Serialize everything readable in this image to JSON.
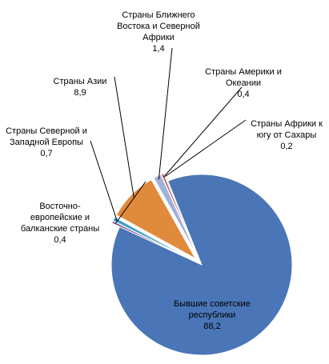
{
  "chart_data": {
    "type": "pie",
    "slices": [
      {
        "label_lines": [
          "Бывшие советские",
          "республики",
          "88,2"
        ],
        "value": 88.2,
        "color": "#4a76b8"
      },
      {
        "label_lines": [
          "Восточно-",
          "европейские и",
          "балканские страны",
          "0,4"
        ],
        "value": 0.4,
        "color": "#7f4b8c"
      },
      {
        "label_lines": [
          "Страны Северной и",
          "Западной Европы",
          "0,7"
        ],
        "value": 0.7,
        "color": "#3f9fc5"
      },
      {
        "label_lines": [
          "Страны Азии",
          "8,9"
        ],
        "value": 8.9,
        "color": "#e08a3c"
      },
      {
        "label_lines": [
          "Страны Ближнего",
          "Востока и Северной",
          "Африки",
          "1,4"
        ],
        "value": 1.4,
        "color": "#9fb2d8"
      },
      {
        "label_lines": [
          "Страны Америки и",
          "Океании",
          "0,4"
        ],
        "value": 0.4,
        "color": "#c0504d"
      },
      {
        "label_lines": [
          "Страны Африки к",
          "югу от Сахары",
          "0,2"
        ],
        "value": 0.2,
        "color": "#9bbb59"
      }
    ]
  }
}
